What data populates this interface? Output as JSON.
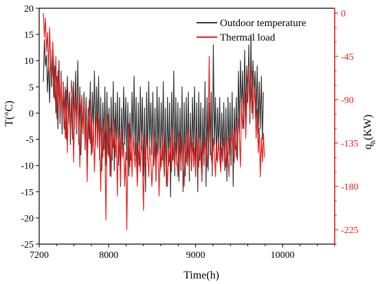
{
  "chart_data": {
    "type": "line",
    "title": "",
    "xlabel": "Time(h)",
    "ylabel_left": "T(°C)",
    "ylabel_right": {
      "base": "q",
      "sub": "h",
      "rest": "(KW)"
    },
    "xlim": [
      7200,
      10600
    ],
    "ylim_left": [
      -25,
      20
    ],
    "ylim_right": [
      -240,
      5
    ],
    "x_ticks": [
      7200,
      8000,
      9000,
      10000
    ],
    "y_left_ticks": [
      20,
      15,
      10,
      5,
      0,
      -5,
      -10,
      -15,
      -20,
      -25
    ],
    "y_right_ticks": [
      0,
      -45,
      -90,
      -135,
      -180,
      -225
    ],
    "grid": false,
    "legend_position": "top-right",
    "colors": {
      "outdoor": "#333333",
      "load": "#e8201e",
      "right_axis": "#e8201e"
    },
    "series": [
      {
        "name": "Outdoor temperature",
        "axis": "left",
        "x_start": 7248,
        "x_step": 12,
        "values": [
          6,
          14,
          9,
          11,
          4,
          10,
          2,
          12,
          5,
          11,
          3,
          9,
          0,
          7,
          -3,
          10,
          -2,
          8,
          -4,
          6,
          -3,
          5,
          -5,
          7,
          -2,
          4,
          -6,
          3,
          -5,
          6,
          -3,
          8,
          -4,
          10,
          -6,
          5,
          -8,
          2,
          -4,
          4,
          -7,
          3,
          -10,
          1,
          -5,
          6,
          -8,
          4,
          -3,
          8,
          -6,
          5,
          -4,
          7,
          -9,
          3,
          -11,
          2,
          -7,
          5,
          -10,
          4,
          -8,
          1,
          -12,
          3,
          -9,
          6,
          -11,
          2,
          -7,
          4,
          -10,
          3,
          -14,
          1,
          -8,
          5,
          -6,
          3,
          -9,
          2,
          -12,
          0,
          -9,
          4,
          -6,
          7,
          -8,
          3,
          -13,
          2,
          -10,
          5,
          -7,
          3,
          -12,
          1,
          -15,
          4,
          -9,
          6,
          -6,
          2,
          -8,
          4,
          -10,
          1,
          -13,
          5,
          -8,
          3,
          -11,
          2,
          -9,
          6,
          -12,
          1,
          -14,
          3,
          -10,
          2,
          -16,
          4,
          -9,
          8,
          -12,
          3,
          -10,
          2,
          -13,
          1,
          -11,
          5,
          -15,
          2,
          -12,
          3,
          -10,
          4,
          -13,
          0,
          -11,
          3,
          -8,
          5,
          -12,
          2,
          -15,
          4,
          -9,
          2,
          -13,
          1,
          -10,
          6,
          -14,
          3,
          -11,
          2,
          -8,
          4,
          -12,
          13,
          -6,
          3,
          -9,
          1,
          -7,
          3,
          -10,
          0,
          -8,
          2,
          -11,
          1,
          -13,
          3,
          -8,
          2,
          -10,
          4,
          -14,
          1,
          -7,
          3,
          -9,
          8,
          -4,
          10,
          0,
          8,
          -3,
          12,
          -1,
          9,
          2,
          13,
          -2,
          15,
          0,
          10,
          3,
          8,
          -1,
          9,
          -4,
          6,
          -3,
          7,
          -5,
          4
        ]
      },
      {
        "name": "Thermal load",
        "axis": "right",
        "x_start": 7248,
        "x_step": 12,
        "values": [
          0,
          -25,
          -5,
          -40,
          -20,
          -60,
          -15,
          -50,
          -70,
          -30,
          -55,
          -90,
          -45,
          -110,
          -60,
          -80,
          -100,
          -65,
          -115,
          -75,
          -95,
          -130,
          -80,
          -145,
          -95,
          -100,
          -130,
          -70,
          -85,
          -155,
          -105,
          -90,
          -120,
          -80,
          -110,
          -160,
          -100,
          -85,
          -125,
          -95,
          -140,
          -110,
          -175,
          -120,
          -90,
          -135,
          -105,
          -145,
          -115,
          -165,
          -125,
          -100,
          -140,
          -110,
          -130,
          -185,
          -120,
          -150,
          -110,
          -130,
          -215,
          -135,
          -105,
          -150,
          -120,
          -170,
          -125,
          -140,
          -110,
          -150,
          -130,
          -190,
          -125,
          -145,
          -175,
          -120,
          -150,
          -135,
          -180,
          -145,
          -225,
          -150,
          -115,
          -160,
          -130,
          -170,
          -125,
          -145,
          -160,
          -135,
          -180,
          -150,
          -135,
          -165,
          -125,
          -150,
          -205,
          -140,
          -155,
          -125,
          -145,
          -170,
          -135,
          -150,
          -180,
          -160,
          -125,
          -145,
          -165,
          -135,
          -150,
          -190,
          -140,
          -160,
          -125,
          -150,
          -170,
          -135,
          -155,
          -180,
          -140,
          -155,
          -130,
          -165,
          -120,
          -150,
          -160,
          -135,
          -150,
          -170,
          -125,
          -140,
          -160,
          -130,
          -150,
          -180,
          -135,
          -155,
          -120,
          -145,
          -165,
          -125,
          -150,
          -135,
          -160,
          -140,
          -170,
          -125,
          -145,
          -160,
          -130,
          -150,
          -175,
          -135,
          -150,
          -130,
          -145,
          -160,
          -130,
          -45,
          -135,
          -150,
          -160,
          -130,
          -145,
          -170,
          -135,
          -155,
          -130,
          -150,
          -165,
          -140,
          -155,
          -130,
          -145,
          -160,
          -130,
          -150,
          -170,
          -130,
          -140,
          -120,
          -135,
          -155,
          -120,
          -150,
          -125,
          -110,
          -130,
          -160,
          -90,
          -120,
          -100,
          -80,
          -130,
          -95,
          -70,
          -55,
          -105,
          -85,
          -60,
          -110,
          -75,
          -95,
          -130,
          -100,
          -145,
          -120,
          -170,
          -130,
          -155,
          -125,
          -150
        ]
      }
    ]
  },
  "legend": {
    "items": [
      {
        "label": "Outdoor temperature",
        "color": "#333333"
      },
      {
        "label": "Thermal load",
        "color": "#e8201e"
      }
    ]
  }
}
